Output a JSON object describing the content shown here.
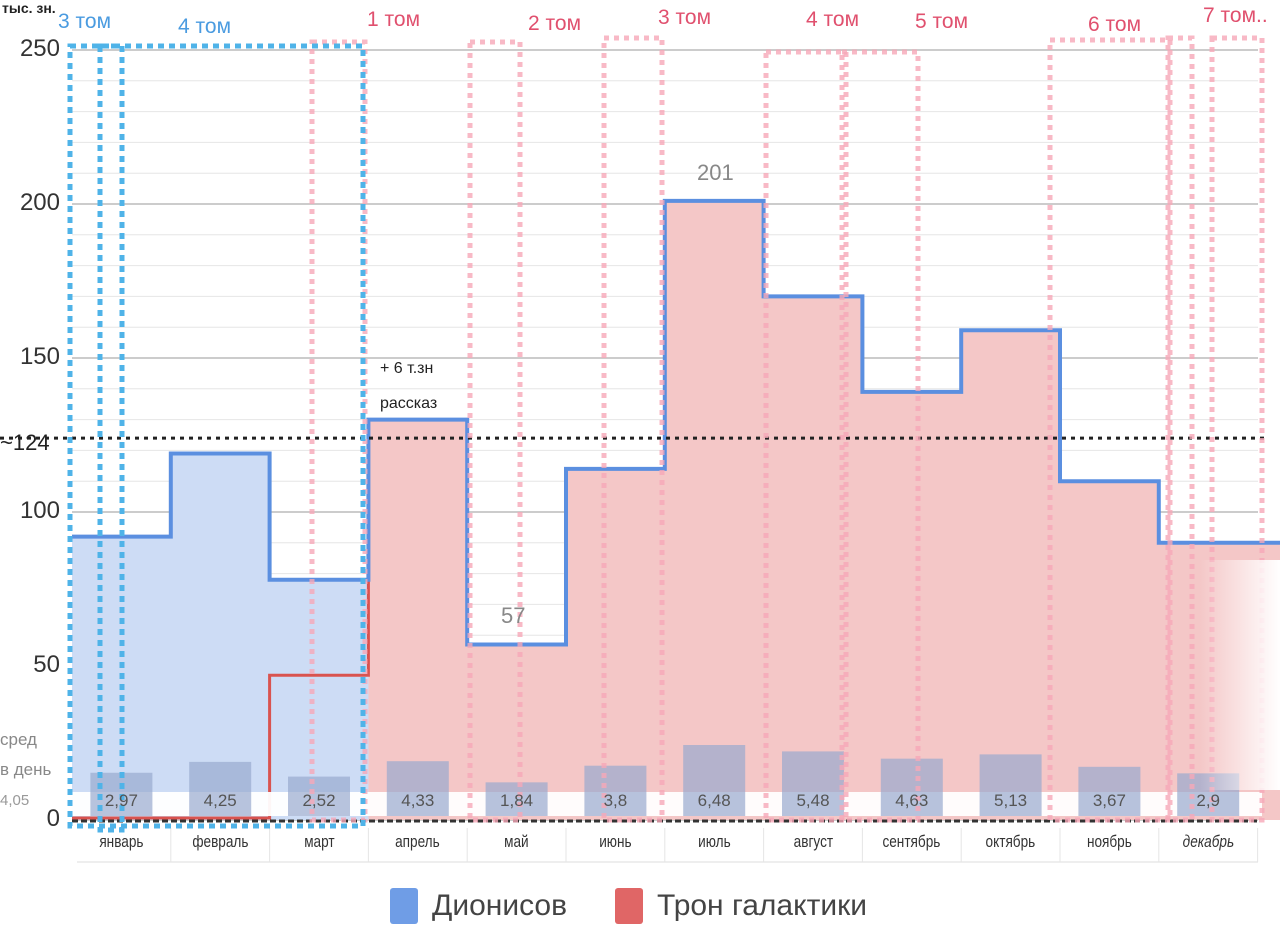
{
  "chart_data": {
    "type": "area",
    "title": "",
    "ylabel": "тыс. зн.",
    "ylim": [
      0,
      250
    ],
    "yticks": [
      "0",
      "50",
      "100",
      "150",
      "200",
      "250"
    ],
    "categories": [
      "январь",
      "февраль",
      "март",
      "апрель",
      "май",
      "июнь",
      "июль",
      "август",
      "сентябрь",
      "октябрь",
      "ноябрь",
      "декабрь"
    ],
    "series": [
      {
        "name": "Дионисов",
        "color": "#6f9de6",
        "values": [
          92,
          119,
          78,
          0,
          0,
          0,
          0,
          0,
          0,
          0,
          0,
          0
        ]
      },
      {
        "name": "Трон галактики",
        "color": "#e06666",
        "values": [
          0,
          0,
          47,
          130,
          57,
          114,
          201,
          170,
          139,
          159,
          110,
          90
        ]
      }
    ],
    "total_line": [
      92,
      119,
      78,
      130,
      57,
      114,
      201,
      170,
      139,
      159,
      110,
      90
    ],
    "average_line": {
      "value": 124,
      "label": "~124"
    },
    "daily_avg": {
      "label_line1": "сред",
      "label_line2": "в день",
      "overall": "4,05",
      "values": [
        2.97,
        4.25,
        2.52,
        4.33,
        1.84,
        3.8,
        6.48,
        5.48,
        4.63,
        5.13,
        3.67,
        2.9
      ],
      "labels": [
        "2,97",
        "4,25",
        "2,52",
        "4,33",
        "1,84",
        "3,8",
        "6,48",
        "5,48",
        "4,63",
        "5,13",
        "3,67",
        "2,9"
      ]
    },
    "annotations": {
      "jul": "201",
      "may": "57",
      "apr_line1": "+ 6 т.зн",
      "apr_line2": "рассказ"
    },
    "volumes": {
      "dionisov": [
        "3 том",
        "4 том"
      ],
      "tron": [
        "1 том",
        "2 том",
        "3 том",
        "4 том",
        "5 том",
        "6 том",
        "7 том.."
      ]
    },
    "legend": [
      "Дионисов",
      "Трон галактики"
    ],
    "legend_position": "bottom",
    "grid": true
  }
}
